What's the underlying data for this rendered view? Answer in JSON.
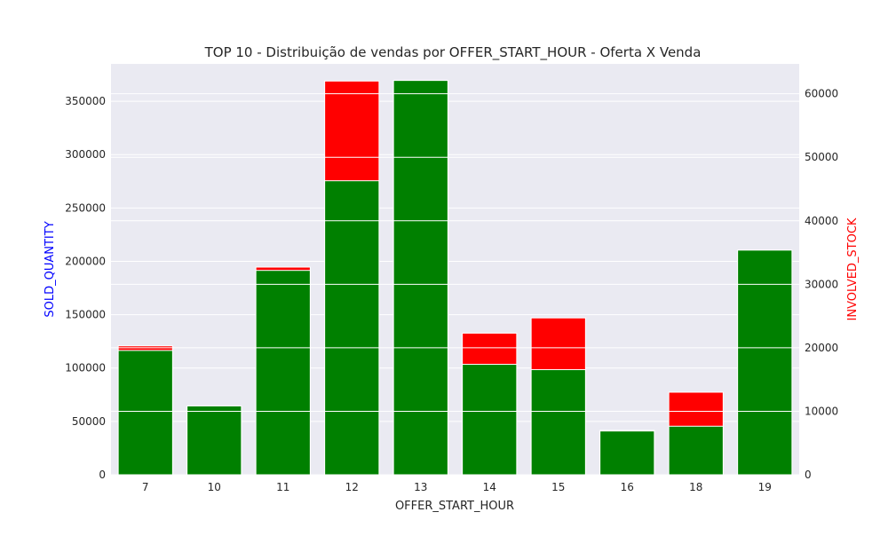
{
  "chart_data": {
    "type": "bar",
    "title": "TOP 10 - Distribuição de vendas por OFFER_START_HOUR - Oferta X Venda",
    "xlabel": "OFFER_START_HOUR",
    "ylabel_left": "SOLD_QUANTITY",
    "ylabel_right": "INVOLVED_STOCK",
    "categories": [
      "7",
      "10",
      "11",
      "12",
      "13",
      "14",
      "15",
      "16",
      "18",
      "19"
    ],
    "ylim_left": [
      0,
      385000
    ],
    "ylim_right": [
      0,
      64700
    ],
    "yticks_left": [
      "0",
      "50000",
      "100000",
      "150000",
      "200000",
      "250000",
      "300000",
      "350000"
    ],
    "yticks_right": [
      "0",
      "10000",
      "20000",
      "30000",
      "40000",
      "50000",
      "60000"
    ],
    "grid": true,
    "series": [
      {
        "name": "SOLD_QUANTITY",
        "axis": "left",
        "color": "#008000",
        "values": [
          116500,
          64500,
          191500,
          275500,
          369500,
          103500,
          98500,
          41000,
          45500,
          210500
        ]
      },
      {
        "name": "INVOLVED_STOCK",
        "axis": "right",
        "color": "#ff0000",
        "values": [
          20300,
          10700,
          32700,
          62000,
          61800,
          22300,
          24700,
          7000,
          13000,
          35100
        ]
      }
    ],
    "colors": {
      "background": "#eaeaf2",
      "grid": "#ffffff",
      "left_label": "#0000ff",
      "right_label": "#ff0000"
    }
  }
}
